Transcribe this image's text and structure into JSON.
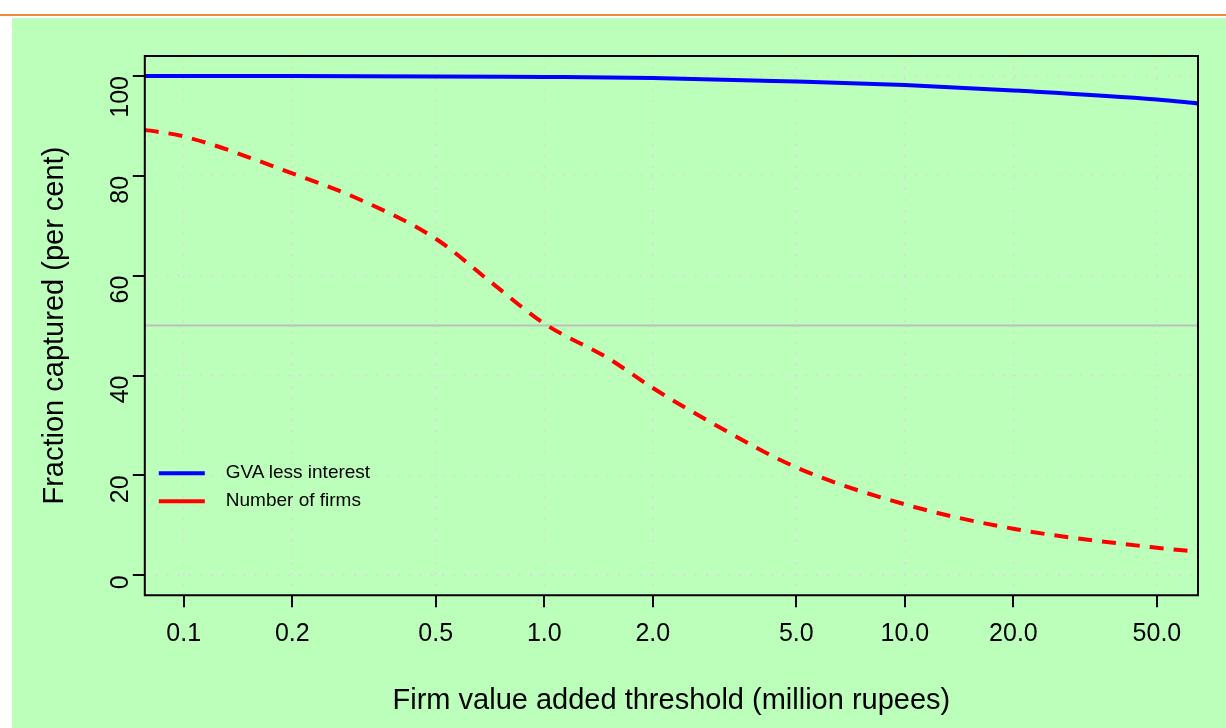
{
  "chart_data": {
    "type": "line",
    "xlabel": "Firm value added threshold (million rupees)",
    "ylabel": "Fraction captured (per cent)",
    "log": "x",
    "xlim": [
      0.078,
      65
    ],
    "ylim": [
      -4,
      104
    ],
    "xticks": [
      0.1,
      0.2,
      0.5,
      {
        "value": 1,
        "label": "1.0"
      },
      {
        "value": 2,
        "label": "2.0"
      },
      {
        "value": 5,
        "label": "5.0"
      },
      {
        "value": 10,
        "label": "10.0"
      },
      {
        "value": 20,
        "label": "20.0"
      },
      {
        "value": 50,
        "label": "50.0"
      }
    ],
    "yticks": [
      0,
      20,
      40,
      60,
      80,
      100
    ],
    "grid": true,
    "legend": "bottom left",
    "marker": "none",
    "ref_lines": [
      {
        "axis": "y",
        "value": 50,
        "color": "#bebebe"
      }
    ],
    "series": [
      {
        "name": "GVA less interest",
        "color": "#0000ff",
        "line_style": "solid",
        "x": [
          0.078,
          0.1,
          0.2,
          0.5,
          1,
          2,
          5,
          10,
          20,
          50,
          65
        ],
        "values": [
          100,
          100,
          100,
          99.9,
          99.8,
          99.6,
          98.9,
          98.2,
          97.1,
          95.3,
          94.5
        ]
      },
      {
        "name": "Number of firms",
        "color": "#ff0000",
        "line_style": "dashed",
        "x": [
          0.078,
          0.1,
          0.2,
          0.3,
          0.5,
          0.7,
          1,
          1.5,
          2,
          3,
          5,
          10,
          20,
          50,
          65
        ],
        "values": [
          89.2,
          87.9,
          80.5,
          75.6,
          67.4,
          59.1,
          50.4,
          43.5,
          37.5,
          30,
          21.6,
          14.2,
          9.3,
          5.5,
          4.7
        ]
      }
    ]
  }
}
